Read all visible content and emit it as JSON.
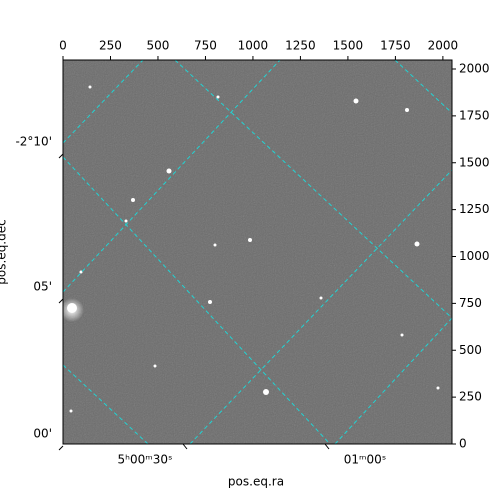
{
  "chart_data": {
    "type": "image",
    "xlabel": "pos.eq.ra",
    "ylabel": "pos.eq.dec",
    "xlim": [
      0,
      2048
    ],
    "ylim": [
      0,
      2048
    ],
    "xticks": [
      0,
      250,
      500,
      750,
      1000,
      1250,
      1500,
      1750,
      2000
    ],
    "yticks": [
      0,
      250,
      500,
      750,
      1000,
      1250,
      1500,
      1750,
      2000
    ],
    "ra_tick_labels": [
      "5ʰ00ᵐ30ˢ",
      "01ᵐ00ˢ"
    ],
    "dec_tick_labels": [
      "-2°10'",
      "05'",
      "00'"
    ]
  }
}
